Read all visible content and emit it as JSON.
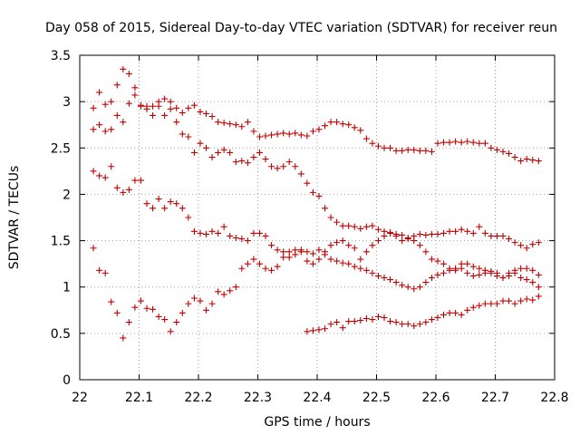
{
  "chart_data": {
    "type": "scatter",
    "title": "Day 058 of 2015, Sidereal Day-to-day VTEC variation (SDTVAR) for receiver reun",
    "xlabel": "GPS time / hours",
    "ylabel": "SDTVAR / TECUs",
    "xlim": [
      22.0,
      22.8
    ],
    "ylim": [
      0,
      3.5
    ],
    "xticks": [
      "22",
      "22.1",
      "22.2",
      "22.3",
      "22.4",
      "22.5",
      "22.6",
      "22.7",
      "22.8"
    ],
    "yticks": [
      "0",
      "0.5",
      "1",
      "1.5",
      "2",
      "2.5",
      "3",
      "3.5"
    ],
    "grid": true,
    "marker": "+",
    "color": "#c00000",
    "series": [
      {
        "name": "s1",
        "x": [
          22.023,
          22.033,
          22.043,
          22.053,
          22.063,
          22.073,
          22.083,
          22.093,
          22.103,
          22.113,
          22.123,
          22.133,
          22.143,
          22.153,
          22.163,
          22.173,
          22.183,
          22.193,
          22.203,
          22.213,
          22.223,
          22.233,
          22.243,
          22.253,
          22.263,
          22.273,
          22.283,
          22.293,
          22.303,
          22.313,
          22.323,
          22.333,
          22.343,
          22.353,
          22.363,
          22.373,
          22.383,
          22.393,
          22.403,
          22.413,
          22.423,
          22.433,
          22.443,
          22.453,
          22.463,
          22.473,
          22.483,
          22.493,
          22.503,
          22.513,
          22.523,
          22.533,
          22.543,
          22.553,
          22.563,
          22.573,
          22.583,
          22.593,
          22.603,
          22.613,
          22.623,
          22.633,
          22.643,
          22.653,
          22.663,
          22.673,
          22.683,
          22.693,
          22.703,
          22.713,
          22.723,
          22.733,
          22.743,
          22.753,
          22.763,
          22.773
        ],
        "y": [
          2.93,
          3.1,
          2.97,
          3.0,
          2.85,
          2.78,
          2.98,
          3.07,
          2.96,
          2.92,
          2.85,
          2.95,
          3.03,
          3.0,
          2.93,
          2.88,
          2.93,
          2.96,
          2.89,
          2.87,
          2.84,
          2.78,
          2.77,
          2.76,
          2.75,
          2.73,
          2.78,
          2.68,
          2.62,
          2.63,
          2.64,
          2.65,
          2.66,
          2.65,
          2.66,
          2.64,
          2.63,
          2.68,
          2.7,
          2.74,
          2.78,
          2.78,
          2.76,
          2.75,
          2.72,
          2.69,
          2.6,
          2.55,
          2.52,
          2.5,
          2.5,
          2.47,
          2.47,
          2.48,
          2.48,
          2.47,
          2.47,
          2.46,
          2.55,
          2.56,
          2.56,
          2.57,
          2.56,
          2.57,
          2.56,
          2.55,
          2.55,
          2.5,
          2.48,
          2.46,
          2.44,
          2.4,
          2.36,
          2.38,
          2.37,
          2.36
        ]
      },
      {
        "name": "s2",
        "x": [
          22.023,
          22.033,
          22.043,
          22.053,
          22.063,
          22.073,
          22.083,
          22.093,
          22.103,
          22.113,
          22.123,
          22.133,
          22.143,
          22.153,
          22.163,
          22.173,
          22.183,
          22.193,
          22.203,
          22.213,
          22.223,
          22.233,
          22.243,
          22.253,
          22.263,
          22.273,
          22.283,
          22.293,
          22.303,
          22.313,
          22.323,
          22.333,
          22.343,
          22.353,
          22.363,
          22.373,
          22.383,
          22.393,
          22.403,
          22.413,
          22.423,
          22.433,
          22.443,
          22.453,
          22.463,
          22.473,
          22.483,
          22.493,
          22.503,
          22.513,
          22.523,
          22.533,
          22.543,
          22.553,
          22.563,
          22.573,
          22.583,
          22.593,
          22.603,
          22.613,
          22.623,
          22.633,
          22.643,
          22.653,
          22.663,
          22.673,
          22.683,
          22.693,
          22.703,
          22.713,
          22.723,
          22.733,
          22.743,
          22.753,
          22.763,
          22.773
        ],
        "y": [
          2.7,
          2.75,
          2.68,
          2.7,
          3.18,
          3.35,
          3.3,
          3.15,
          2.95,
          2.95,
          2.95,
          3.0,
          2.85,
          2.92,
          2.78,
          2.65,
          2.62,
          2.45,
          2.55,
          2.5,
          2.4,
          2.45,
          2.48,
          2.45,
          2.35,
          2.36,
          2.34,
          2.4,
          2.45,
          2.38,
          2.3,
          2.28,
          2.3,
          2.35,
          2.3,
          2.22,
          2.12,
          2.02,
          1.98,
          1.85,
          1.75,
          1.7,
          1.66,
          1.66,
          1.65,
          1.63,
          1.65,
          1.66,
          1.62,
          1.6,
          1.59,
          1.57,
          1.56,
          1.53,
          1.5,
          1.45,
          1.38,
          1.3,
          1.28,
          1.25,
          1.2,
          1.18,
          1.2,
          1.15,
          1.12,
          1.13,
          1.15,
          1.17,
          1.15,
          1.1,
          1.12,
          1.15,
          1.1,
          1.08,
          1.05,
          1.0
        ]
      },
      {
        "name": "s3",
        "x": [
          22.023,
          22.033,
          22.043,
          22.053,
          22.063,
          22.073,
          22.083,
          22.093,
          22.103,
          22.113,
          22.123,
          22.133,
          22.143,
          22.153,
          22.163,
          22.173,
          22.183,
          22.193,
          22.203,
          22.213,
          22.223,
          22.233,
          22.243,
          22.253,
          22.263,
          22.273,
          22.283,
          22.293,
          22.303,
          22.313,
          22.323,
          22.333,
          22.343,
          22.353,
          22.363,
          22.373,
          22.383,
          22.393,
          22.403,
          22.413,
          22.423,
          22.433,
          22.443,
          22.453,
          22.463,
          22.473,
          22.483,
          22.493,
          22.503,
          22.513,
          22.523,
          22.533,
          22.543,
          22.553,
          22.563,
          22.573,
          22.583,
          22.593,
          22.603,
          22.613,
          22.623,
          22.633,
          22.643,
          22.653,
          22.663,
          22.673,
          22.683,
          22.693,
          22.703,
          22.713,
          22.723,
          22.733,
          22.743,
          22.753,
          22.763,
          22.773
        ],
        "y": [
          2.25,
          2.2,
          2.18,
          2.3,
          2.07,
          2.02,
          2.05,
          2.15,
          2.15,
          1.9,
          1.85,
          1.95,
          1.85,
          1.92,
          1.9,
          1.85,
          1.75,
          1.6,
          1.58,
          1.57,
          1.6,
          1.58,
          1.65,
          1.55,
          1.53,
          1.52,
          1.5,
          1.58,
          1.58,
          1.55,
          1.45,
          1.4,
          1.38,
          1.38,
          1.4,
          1.4,
          1.38,
          1.36,
          1.4,
          1.35,
          1.3,
          1.28,
          1.26,
          1.25,
          1.22,
          1.2,
          1.18,
          1.15,
          1.12,
          1.1,
          1.08,
          1.05,
          1.02,
          1.0,
          0.98,
          1.0,
          1.05,
          1.1,
          1.13,
          1.15,
          1.18,
          1.2,
          1.25,
          1.25,
          1.22,
          1.2,
          1.18,
          1.15,
          1.12,
          1.1,
          1.15,
          1.18,
          1.2,
          1.2,
          1.18,
          1.13
        ]
      },
      {
        "name": "s4",
        "x": [
          22.023,
          22.033,
          22.043,
          22.053,
          22.063,
          22.073,
          22.083,
          22.093,
          22.103,
          22.113,
          22.123,
          22.133,
          22.143,
          22.153,
          22.163,
          22.173,
          22.183,
          22.193,
          22.203,
          22.213,
          22.223,
          22.233,
          22.243,
          22.253,
          22.263,
          22.273,
          22.283,
          22.293,
          22.303,
          22.313,
          22.323,
          22.333,
          22.343,
          22.353,
          22.363,
          22.373,
          22.383,
          22.393,
          22.403,
          22.413,
          22.423,
          22.433,
          22.443,
          22.453,
          22.463,
          22.473,
          22.483,
          22.493,
          22.503,
          22.513,
          22.523,
          22.533,
          22.543,
          22.553,
          22.563,
          22.573,
          22.583,
          22.593,
          22.603,
          22.613,
          22.623,
          22.633,
          22.643,
          22.653,
          22.663,
          22.673,
          22.683,
          22.693,
          22.703,
          22.713,
          22.723,
          22.733,
          22.743,
          22.753,
          22.763,
          22.773
        ],
        "y": [
          1.42,
          1.18,
          1.15,
          0.84,
          0.72,
          0.45,
          0.62,
          0.78,
          0.85,
          0.77,
          0.76,
          0.68,
          0.65,
          0.52,
          0.62,
          0.72,
          0.82,
          0.88,
          0.85,
          0.75,
          0.82,
          0.95,
          0.92,
          0.96,
          1.0,
          1.2,
          1.25,
          1.3,
          1.25,
          1.2,
          1.18,
          1.22,
          1.32,
          1.32,
          1.35,
          1.38,
          1.28,
          1.25,
          1.3,
          1.38,
          1.45,
          1.48,
          1.5,
          1.45,
          1.42,
          1.3,
          1.38,
          1.45,
          1.5,
          1.55,
          1.58,
          1.55,
          1.5,
          1.52,
          1.55,
          1.57,
          1.56,
          1.57,
          1.57,
          1.58,
          1.6,
          1.6,
          1.62,
          1.6,
          1.58,
          1.65,
          1.58,
          1.55,
          1.55,
          1.55,
          1.52,
          1.48,
          1.45,
          1.42,
          1.46,
          1.48
        ]
      },
      {
        "name": "s5",
        "x": [
          22.383,
          22.393,
          22.403,
          22.413,
          22.423,
          22.433,
          22.443,
          22.453,
          22.463,
          22.473,
          22.483,
          22.493,
          22.503,
          22.513,
          22.523,
          22.533,
          22.543,
          22.553,
          22.563,
          22.573,
          22.583,
          22.593,
          22.603,
          22.613,
          22.623,
          22.633,
          22.643,
          22.653,
          22.663,
          22.673,
          22.683,
          22.693,
          22.703,
          22.713,
          22.723,
          22.733,
          22.743,
          22.753,
          22.763,
          22.773
        ],
        "y": [
          0.52,
          0.53,
          0.54,
          0.55,
          0.6,
          0.62,
          0.56,
          0.63,
          0.63,
          0.64,
          0.66,
          0.65,
          0.68,
          0.67,
          0.63,
          0.62,
          0.6,
          0.6,
          0.58,
          0.6,
          0.62,
          0.65,
          0.67,
          0.7,
          0.72,
          0.72,
          0.7,
          0.75,
          0.78,
          0.8,
          0.82,
          0.82,
          0.82,
          0.85,
          0.85,
          0.82,
          0.85,
          0.87,
          0.86,
          0.9
        ]
      }
    ]
  }
}
